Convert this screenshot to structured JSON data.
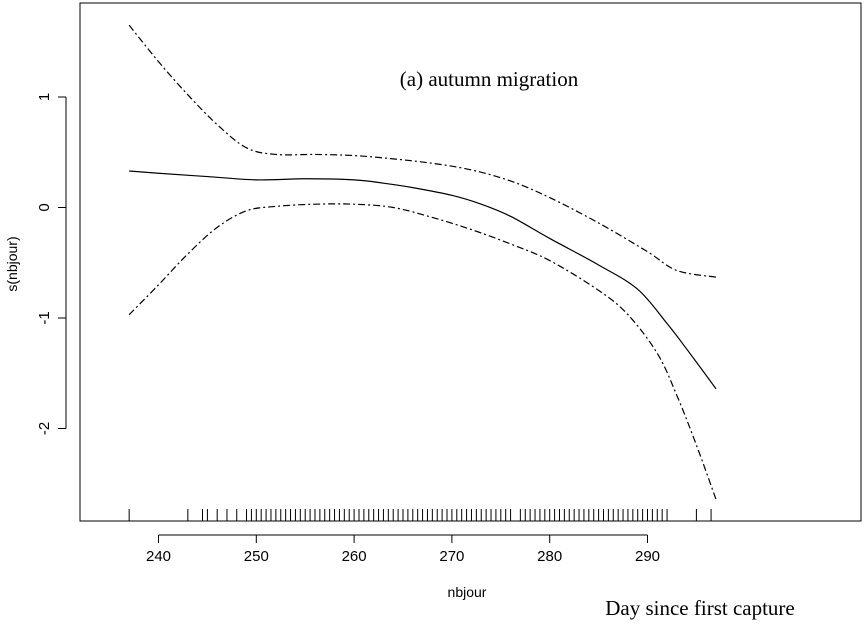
{
  "chart_data": {
    "type": "line",
    "title": "(a) autumn migration",
    "xlabel": "nbjour",
    "ylabel": "s(nbjour)",
    "caption": "Day since first capture",
    "xlim": [
      234.5,
      298
    ],
    "ylim": [
      -2.75,
      1.85
    ],
    "x_ticks": [
      240,
      250,
      260,
      270,
      280,
      290
    ],
    "x_tick_labels": [
      "240",
      "250",
      "260",
      "270",
      "280",
      "290"
    ],
    "y_ticks": [
      1,
      0,
      -1,
      -2
    ],
    "y_tick_labels": [
      "1",
      "0",
      "-1",
      "-2"
    ],
    "grid": false,
    "legend": "none",
    "series": [
      {
        "role": "fit",
        "style": "solid",
        "x": [
          237,
          240,
          245,
          250,
          255,
          260,
          263,
          266,
          270,
          273,
          276,
          280,
          285,
          289,
          292,
          294,
          297
        ],
        "y": [
          0.33,
          0.31,
          0.28,
          0.25,
          0.26,
          0.25,
          0.22,
          0.18,
          0.11,
          0.03,
          -0.08,
          -0.28,
          -0.52,
          -0.74,
          -1.05,
          -1.28,
          -1.64
        ]
      },
      {
        "role": "upper band",
        "style": "dash-dot",
        "x": [
          237,
          240,
          243,
          246,
          249,
          252,
          256,
          260,
          264,
          268,
          272,
          276,
          280,
          285,
          290,
          293,
          297
        ],
        "y": [
          1.65,
          1.32,
          1.02,
          0.75,
          0.54,
          0.48,
          0.48,
          0.47,
          0.44,
          0.4,
          0.34,
          0.24,
          0.09,
          -0.14,
          -0.4,
          -0.57,
          -0.63
        ]
      },
      {
        "role": "lower band",
        "style": "dash-dot",
        "x": [
          237,
          240,
          243,
          246,
          249,
          252,
          256,
          260,
          264,
          268,
          272,
          276,
          280,
          285,
          288,
          291,
          293,
          295,
          297
        ],
        "y": [
          -0.97,
          -0.7,
          -0.42,
          -0.18,
          -0.03,
          0.01,
          0.03,
          0.03,
          0.0,
          -0.09,
          -0.2,
          -0.33,
          -0.48,
          -0.75,
          -0.97,
          -1.32,
          -1.7,
          -2.15,
          -2.64
        ]
      }
    ],
    "rug_x": [
      237,
      243,
      244.5,
      245,
      246,
      247,
      248,
      249,
      249.5,
      250,
      250.5,
      251,
      251.5,
      252,
      252.5,
      253,
      253.5,
      254,
      254.5,
      255,
      255.5,
      256,
      256.5,
      257,
      257.5,
      258,
      258.5,
      259,
      259.5,
      260,
      260.5,
      261,
      261.5,
      262,
      262.5,
      263,
      263.5,
      264,
      264.5,
      265,
      265.5,
      266,
      266.5,
      267,
      267.5,
      268,
      268.5,
      269,
      269.5,
      270,
      270.5,
      271,
      271.5,
      272,
      272.5,
      273,
      273.5,
      274,
      274.5,
      275,
      275.5,
      276,
      277,
      277.5,
      278,
      278.5,
      279,
      279.5,
      280,
      280.5,
      281,
      281.5,
      282,
      282.5,
      283,
      283.5,
      284,
      284.5,
      285,
      285.5,
      286,
      286.5,
      287,
      287.5,
      288,
      288.5,
      289,
      289.5,
      290,
      290.5,
      291,
      291.5,
      292,
      295,
      296.5
    ]
  }
}
